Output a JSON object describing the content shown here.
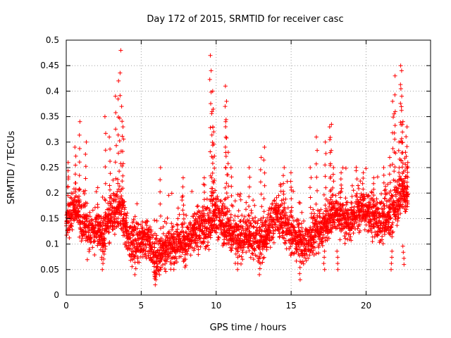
{
  "chart_data": {
    "type": "scatter",
    "title": "Day 172 of 2015, SRMTID for receiver casc",
    "xlabel": "GPS time / hours",
    "ylabel": "SRMTID / TECUs",
    "xlim": [
      0,
      24.3
    ],
    "ylim": [
      0,
      0.5
    ],
    "x_ticks": [
      0,
      5,
      10,
      15,
      20
    ],
    "x_tick_labels": [
      "0",
      "5",
      "10",
      "15",
      "20"
    ],
    "y_ticks": [
      0,
      0.05,
      0.1,
      0.15,
      0.2,
      0.25,
      0.3,
      0.35,
      0.4,
      0.45,
      0.5
    ],
    "y_tick_labels": [
      "0",
      "0.05",
      "0.1",
      "0.15",
      "0.2",
      "0.25",
      "0.3",
      "0.35",
      "0.4",
      "0.45",
      "0.5"
    ],
    "grid": true,
    "marker": "plus",
    "color": "#ff0000",
    "series": [
      {
        "name": "SRMTID",
        "profile_hours": [
          0,
          0.5,
          1.0,
          1.5,
          2.0,
          2.5,
          3.0,
          3.5,
          3.8,
          4.0,
          4.5,
          5.0,
          5.5,
          6.0,
          6.5,
          7.0,
          7.5,
          8.0,
          8.5,
          9.0,
          9.5,
          9.8,
          10.0,
          10.5,
          11.0,
          11.5,
          12.0,
          12.5,
          13.0,
          13.5,
          14.0,
          14.5,
          15.0,
          15.5,
          16.0,
          16.5,
          17.0,
          17.5,
          18.0,
          18.5,
          19.0,
          19.5,
          20.0,
          20.5,
          21.0,
          21.5,
          22.0,
          22.5,
          22.8
        ],
        "profile_median": [
          0.14,
          0.17,
          0.15,
          0.12,
          0.13,
          0.11,
          0.15,
          0.17,
          0.16,
          0.12,
          0.1,
          0.11,
          0.11,
          0.07,
          0.09,
          0.1,
          0.11,
          0.1,
          0.12,
          0.13,
          0.13,
          0.15,
          0.16,
          0.13,
          0.12,
          0.11,
          0.12,
          0.11,
          0.1,
          0.13,
          0.15,
          0.14,
          0.12,
          0.11,
          0.1,
          0.12,
          0.13,
          0.15,
          0.16,
          0.15,
          0.15,
          0.17,
          0.16,
          0.15,
          0.14,
          0.15,
          0.17,
          0.2,
          0.19
        ],
        "peaks": [
          {
            "x": 0.1,
            "y": 0.26
          },
          {
            "x": 0.6,
            "y": 0.29
          },
          {
            "x": 0.9,
            "y": 0.34
          },
          {
            "x": 1.3,
            "y": 0.3
          },
          {
            "x": 2.6,
            "y": 0.35
          },
          {
            "x": 2.9,
            "y": 0.31
          },
          {
            "x": 3.3,
            "y": 0.39
          },
          {
            "x": 3.5,
            "y": 0.42
          },
          {
            "x": 3.6,
            "y": 0.48
          },
          {
            "x": 3.8,
            "y": 0.33
          },
          {
            "x": 3.7,
            "y": 0.37
          },
          {
            "x": 6.3,
            "y": 0.25
          },
          {
            "x": 7.8,
            "y": 0.23
          },
          {
            "x": 9.2,
            "y": 0.23
          },
          {
            "x": 9.6,
            "y": 0.47
          },
          {
            "x": 9.7,
            "y": 0.44
          },
          {
            "x": 9.8,
            "y": 0.4
          },
          {
            "x": 9.75,
            "y": 0.36
          },
          {
            "x": 9.85,
            "y": 0.32
          },
          {
            "x": 10.6,
            "y": 0.41
          },
          {
            "x": 10.7,
            "y": 0.38
          },
          {
            "x": 10.65,
            "y": 0.34
          },
          {
            "x": 10.8,
            "y": 0.28
          },
          {
            "x": 11.0,
            "y": 0.25
          },
          {
            "x": 12.2,
            "y": 0.25
          },
          {
            "x": 13.2,
            "y": 0.29
          },
          {
            "x": 13.0,
            "y": 0.27
          },
          {
            "x": 14.5,
            "y": 0.25
          },
          {
            "x": 15.0,
            "y": 0.24
          },
          {
            "x": 16.3,
            "y": 0.25
          },
          {
            "x": 16.7,
            "y": 0.31
          },
          {
            "x": 17.3,
            "y": 0.3
          },
          {
            "x": 17.6,
            "y": 0.33
          },
          {
            "x": 17.65,
            "y": 0.335
          },
          {
            "x": 17.8,
            "y": 0.25
          },
          {
            "x": 18.3,
            "y": 0.24
          },
          {
            "x": 19.8,
            "y": 0.24
          },
          {
            "x": 20.5,
            "y": 0.23
          },
          {
            "x": 21.2,
            "y": 0.25
          },
          {
            "x": 21.6,
            "y": 0.27
          },
          {
            "x": 21.8,
            "y": 0.38
          },
          {
            "x": 21.9,
            "y": 0.43
          },
          {
            "x": 21.95,
            "y": 0.36
          },
          {
            "x": 22.2,
            "y": 0.3
          },
          {
            "x": 22.3,
            "y": 0.45
          },
          {
            "x": 22.35,
            "y": 0.44
          },
          {
            "x": 22.4,
            "y": 0.39
          },
          {
            "x": 22.45,
            "y": 0.34
          },
          {
            "x": 22.6,
            "y": 0.28
          },
          {
            "x": 22.7,
            "y": 0.33
          },
          {
            "x": 22.75,
            "y": 0.26
          }
        ],
        "dips": [
          {
            "x": 2.4,
            "y": 0.05
          },
          {
            "x": 4.6,
            "y": 0.04
          },
          {
            "x": 5.9,
            "y": 0.02
          },
          {
            "x": 6.0,
            "y": 0.03
          },
          {
            "x": 7.2,
            "y": 0.05
          },
          {
            "x": 11.4,
            "y": 0.05
          },
          {
            "x": 12.9,
            "y": 0.04
          },
          {
            "x": 15.6,
            "y": 0.03
          },
          {
            "x": 17.2,
            "y": 0.05
          },
          {
            "x": 18.1,
            "y": 0.05
          },
          {
            "x": 21.7,
            "y": 0.05
          },
          {
            "x": 22.5,
            "y": 0.06
          }
        ]
      }
    ]
  }
}
